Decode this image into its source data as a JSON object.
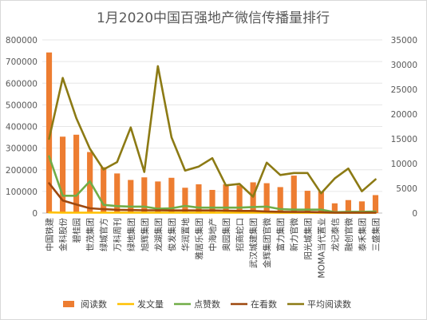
{
  "chart_data": {
    "type": "bar",
    "title": "1月2020中国百强地产微信传播量排行",
    "categories": [
      "中国铁建",
      "金科股份",
      "碧桂园",
      "世茂集团",
      "绿城官方",
      "万科周刊",
      "绿地集团",
      "旭辉集团",
      "龙湖集团",
      "俊发集团",
      "华润置地",
      "雅居乐集团",
      "中海地产",
      "奥园集团",
      "招商蛇口",
      "武汉城建集团",
      "金辉集团官微",
      "富力集团",
      "新力官微",
      "阳光城集团",
      "MOMA当代置业",
      "龙记泰信",
      "融创官微",
      "泰禾集团",
      "三盛集团"
    ],
    "y_left": {
      "ticks": [
        "0",
        "100000",
        "200000",
        "300000",
        "400000",
        "500000",
        "600000",
        "700000",
        "800000"
      ],
      "min": 0,
      "max": 800000
    },
    "y_right": {
      "ticks": [
        "0",
        "5000",
        "10000",
        "15000",
        "20000",
        "25000",
        "30000",
        "35000"
      ],
      "min": 0,
      "max": 35000
    },
    "grid": true,
    "legend_position": "bottom",
    "series": [
      {
        "name": "阅读数",
        "kind": "bar",
        "axis": "left",
        "color": "#ed7d31",
        "values": [
          742000,
          353000,
          362000,
          282000,
          212000,
          183000,
          153000,
          165000,
          146000,
          163000,
          117000,
          133000,
          107000,
          133000,
          128000,
          142000,
          138000,
          120000,
          173000,
          103000,
          100000,
          45000,
          60000,
          54000,
          83000
        ]
      },
      {
        "name": "发文量",
        "kind": "line",
        "axis": "left",
        "color": "#ffc000",
        "values": [
          3000,
          2000,
          2000,
          2000,
          2000,
          2000,
          2000,
          2000,
          2000,
          2000,
          2000,
          2000,
          2000,
          2000,
          2000,
          2000,
          2000,
          1500,
          1500,
          1500,
          1500,
          1500,
          1500,
          1500,
          1500
        ]
      },
      {
        "name": "点赞数",
        "kind": "line",
        "axis": "left",
        "color": "#70ad47",
        "values": [
          262000,
          80000,
          80000,
          147000,
          38000,
          32000,
          30000,
          30000,
          20000,
          22000,
          33000,
          25000,
          25000,
          25000,
          25000,
          28000,
          30000,
          18000,
          16000,
          16000,
          16000,
          4000,
          6000,
          6000,
          7000
        ]
      },
      {
        "name": "在看数",
        "kind": "line",
        "axis": "left",
        "color": "#9e480e",
        "values": [
          138000,
          58000,
          40000,
          22000,
          18000,
          15000,
          14000,
          13000,
          13000,
          12000,
          12000,
          12000,
          12000,
          11000,
          10000,
          10000,
          7000,
          6000,
          5000,
          5000,
          4000,
          2000,
          2000,
          2000,
          2000
        ]
      },
      {
        "name": "平均阅读数",
        "kind": "line",
        "axis": "right",
        "color": "#8c7a14",
        "values": [
          15000,
          27300,
          19200,
          13000,
          8800,
          10300,
          17300,
          8300,
          29700,
          15300,
          8600,
          9400,
          11100,
          5600,
          5900,
          3300,
          10200,
          7700,
          8100,
          8100,
          4000,
          7000,
          9000,
          4400,
          6800
        ]
      }
    ]
  }
}
